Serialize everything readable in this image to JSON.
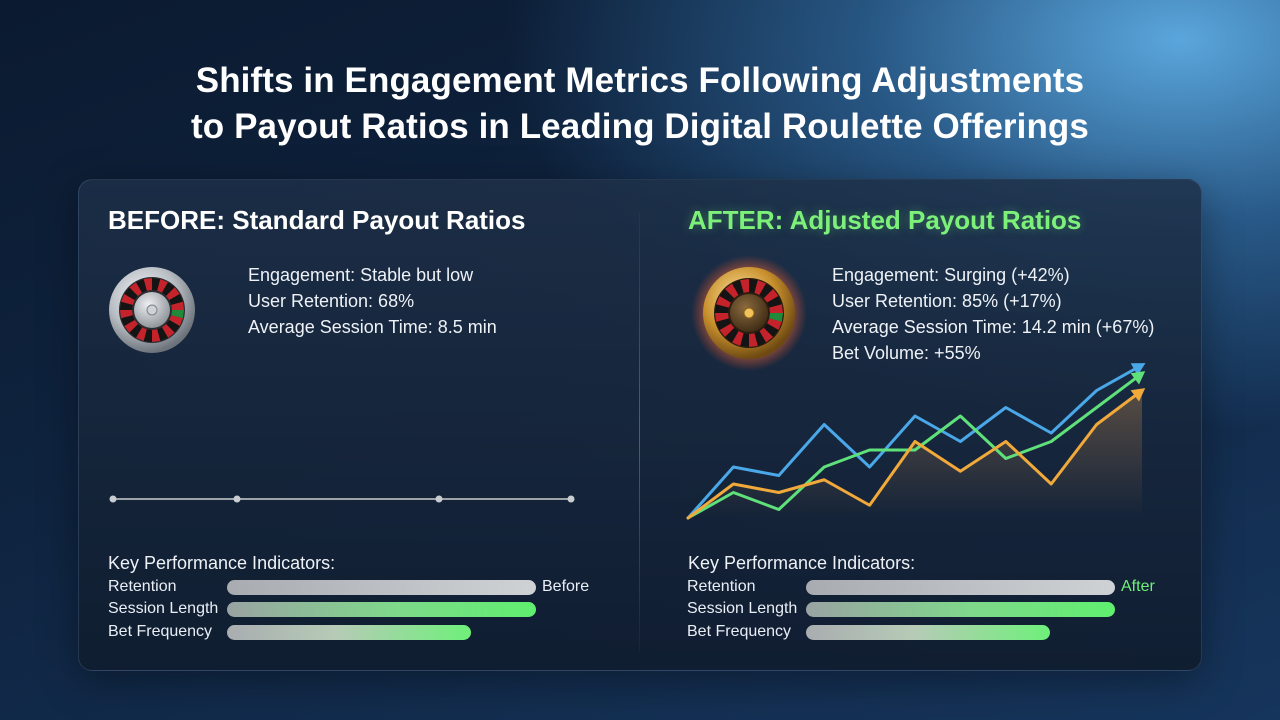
{
  "title": {
    "line1": "Shifts in Engagement Metrics Following Adjustments",
    "line2": "to Payout Ratios in Leading Digital Roulette Offerings"
  },
  "before": {
    "heading": "BEFORE: Standard Payout Ratios",
    "metrics": [
      "Engagement: Stable but low",
      "User Retention: 68%",
      "Average Session Time: 8.5 min"
    ],
    "kpi_heading": "Key Performance Indicators:",
    "kpis": [
      "Retention",
      "Session Length",
      "Bet Frequency"
    ],
    "tag": "Before"
  },
  "after": {
    "heading": "AFTER: Adjusted Payout Ratios",
    "metrics": [
      "Engagement: Surging (+42%)",
      "User Retention: 85% (+17%)",
      "Average Session Time: 14.2 min (+67%)",
      "Bet Volume: +55%"
    ],
    "kpi_heading": "Key Performance Indicators:",
    "kpis": [
      "Retention",
      "Session Length",
      "Bet Frequency"
    ],
    "tag": "After"
  },
  "colors": {
    "green_accent": "#7df07a",
    "blue_line": "#4aa8e8",
    "green_line": "#5fe07a",
    "orange_line": "#f0a93a",
    "gray_bar": "#c4c7ca"
  },
  "icons": {
    "roulette_before": "roulette-wheel-silver",
    "roulette_after": "roulette-wheel-gold",
    "arrow": "up-arrow"
  },
  "chart_data": [
    {
      "type": "line",
      "panel": "before",
      "series": [
        {
          "values": [
            1,
            1,
            1,
            1
          ]
        }
      ],
      "x": [
        0,
        1,
        2,
        3
      ]
    },
    {
      "type": "line",
      "panel": "after",
      "x": [
        0,
        1,
        2,
        3,
        4,
        5,
        6,
        7,
        8,
        9,
        10
      ],
      "series": [
        {
          "color": "blue",
          "values": [
            0,
            6,
            5,
            11,
            6,
            12,
            9,
            13,
            10,
            15,
            18
          ]
        },
        {
          "color": "green",
          "values": [
            0,
            3,
            1,
            6,
            8,
            8,
            12,
            7,
            9,
            13,
            17
          ]
        },
        {
          "color": "orange",
          "values": [
            0,
            4,
            3,
            4.5,
            1.5,
            9,
            5.5,
            9,
            4,
            11,
            15
          ]
        }
      ]
    },
    {
      "type": "bar",
      "panel": "before",
      "categories": [
        "Retention",
        "Session Length",
        "Bet Frequency"
      ],
      "values": [
        1.0,
        1.0,
        0.79
      ]
    },
    {
      "type": "bar",
      "panel": "after",
      "categories": [
        "Retention",
        "Session Length",
        "Bet Frequency"
      ],
      "values": [
        1.0,
        1.0,
        0.79
      ]
    }
  ]
}
